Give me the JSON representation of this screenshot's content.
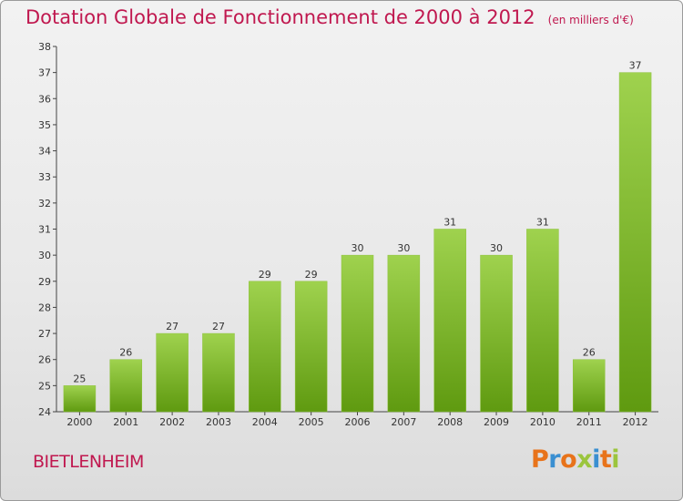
{
  "header": {
    "title": "Dotation Globale de Fonctionnement de 2000 à 2012",
    "unit": "(en milliers d'€)"
  },
  "footer": {
    "commune": "BIETLENHEIM",
    "logo_letters": [
      "P",
      "r",
      "o",
      "x",
      "i",
      "t",
      "i"
    ],
    "logo_colors": [
      "#e8731a",
      "#3a8fd1",
      "#e8731a",
      "#9bc53d",
      "#3a8fd1",
      "#e8731a",
      "#9bc53d"
    ]
  },
  "colors": {
    "title": "#c0184f",
    "bar_top": "#9fd24e",
    "bar_bottom": "#5f9a10"
  },
  "chart_data": {
    "type": "bar",
    "categories": [
      "2000",
      "2001",
      "2002",
      "2003",
      "2004",
      "2005",
      "2006",
      "2007",
      "2008",
      "2009",
      "2010",
      "2011",
      "2012"
    ],
    "values": [
      25,
      26,
      27,
      27,
      29,
      29,
      30,
      30,
      31,
      30,
      31,
      26,
      37
    ],
    "ylim": [
      24,
      38
    ],
    "yticks": [
      24,
      25,
      26,
      27,
      28,
      29,
      30,
      31,
      32,
      33,
      34,
      35,
      36,
      37,
      38
    ],
    "grid": false,
    "data_labels": true
  }
}
